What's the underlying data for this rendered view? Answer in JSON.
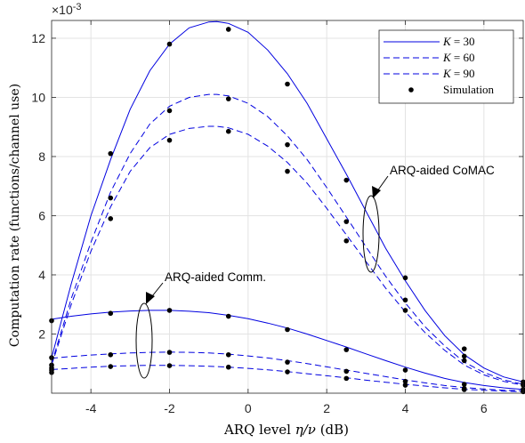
{
  "chart_data": {
    "type": "line",
    "xlabel_main": "ARQ level ",
    "xlabel_math": "η/ν",
    "xlabel_unit": " (dB)",
    "ylabel": "Computation rate (functions/channel use)",
    "y_exponent_base": "×10",
    "y_exponent_power": "-3",
    "xlim": [
      -5,
      7
    ],
    "ylim": [
      0,
      12.6
    ],
    "xticks": [
      -4,
      -2,
      0,
      2,
      4,
      6
    ],
    "yticks": [
      2,
      4,
      6,
      8,
      10,
      12
    ],
    "grid": true,
    "legend_position": "top-right",
    "legend": [
      {
        "label_math": "K",
        "label_rest": " = 30",
        "style": "solid"
      },
      {
        "label_math": "K",
        "label_rest": " = 60",
        "style": "dashed"
      },
      {
        "label_math": "K",
        "label_rest": " = 90",
        "style": "dashed"
      },
      {
        "label_math": "",
        "label_rest": "Simulation",
        "style": "dot"
      }
    ],
    "line_color": "#0000e0",
    "marker_color": "#000000",
    "series": [
      {
        "group": "ARQ-aided CoMAC",
        "K": 30,
        "style": "solid",
        "x": [
          -5,
          -4.5,
          -4,
          -3.5,
          -3,
          -2.5,
          -2,
          -1.5,
          -1,
          -0.8,
          -0.5,
          0,
          0.5,
          1,
          1.5,
          2,
          2.5,
          3,
          3.5,
          4,
          4.5,
          5,
          5.5,
          6,
          6.5,
          7
        ],
        "y": [
          1.2,
          3.7,
          6.0,
          7.9,
          9.6,
          10.9,
          11.8,
          12.35,
          12.55,
          12.56,
          12.5,
          12.2,
          11.6,
          10.8,
          9.8,
          8.6,
          7.4,
          6.15,
          4.9,
          3.8,
          2.8,
          1.95,
          1.3,
          0.85,
          0.55,
          0.38
        ]
      },
      {
        "group": "ARQ-aided CoMAC",
        "K": 60,
        "style": "dashed",
        "x": [
          -5,
          -4.5,
          -4,
          -3.5,
          -3,
          -2.5,
          -2,
          -1.5,
          -1,
          -0.8,
          -0.5,
          0,
          0.5,
          1,
          1.5,
          2,
          2.5,
          3,
          3.5,
          4,
          4.5,
          5,
          5.5,
          6,
          6.5,
          7
        ],
        "y": [
          1.0,
          3.2,
          5.1,
          6.8,
          8.1,
          9.1,
          9.7,
          10.0,
          10.1,
          10.1,
          10.05,
          9.8,
          9.35,
          8.7,
          7.9,
          6.95,
          5.95,
          4.95,
          3.95,
          3.05,
          2.25,
          1.6,
          1.05,
          0.7,
          0.45,
          0.3
        ]
      },
      {
        "group": "ARQ-aided CoMAC",
        "K": 90,
        "style": "dashed",
        "x": [
          -5,
          -4.5,
          -4,
          -3.5,
          -3,
          -2.5,
          -2,
          -1.5,
          -1,
          -0.8,
          -0.5,
          0,
          0.5,
          1,
          1.5,
          2,
          2.5,
          3,
          3.5,
          4,
          4.5,
          5,
          5.5,
          6,
          6.5,
          7
        ],
        "y": [
          0.95,
          3.0,
          4.8,
          6.3,
          7.5,
          8.3,
          8.75,
          8.95,
          9.02,
          9.02,
          8.97,
          8.75,
          8.35,
          7.8,
          7.1,
          6.25,
          5.35,
          4.45,
          3.55,
          2.75,
          2.05,
          1.45,
          0.95,
          0.62,
          0.4,
          0.27
        ]
      },
      {
        "group": "ARQ-aided Comm.",
        "K": 30,
        "style": "solid",
        "x": [
          -5,
          -4.5,
          -4,
          -3.5,
          -3,
          -2.5,
          -2,
          -1.5,
          -1,
          -0.5,
          0,
          0.5,
          1,
          1.5,
          2,
          2.5,
          3,
          3.5,
          4,
          4.5,
          5,
          5.5,
          6,
          6.5,
          7
        ],
        "y": [
          2.5,
          2.6,
          2.68,
          2.74,
          2.78,
          2.8,
          2.8,
          2.77,
          2.72,
          2.63,
          2.52,
          2.37,
          2.2,
          2.0,
          1.78,
          1.56,
          1.33,
          1.1,
          0.88,
          0.68,
          0.5,
          0.36,
          0.26,
          0.18,
          0.13
        ]
      },
      {
        "group": "ARQ-aided Comm.",
        "K": 60,
        "style": "dashed",
        "x": [
          -5,
          -4.5,
          -4,
          -3.5,
          -3,
          -2.5,
          -2,
          -1.5,
          -1,
          -0.5,
          0,
          0.5,
          1,
          1.5,
          2,
          2.5,
          3,
          3.5,
          4,
          4.5,
          5,
          5.5,
          6,
          6.5,
          7
        ],
        "y": [
          1.18,
          1.24,
          1.29,
          1.33,
          1.36,
          1.38,
          1.39,
          1.38,
          1.36,
          1.32,
          1.26,
          1.19,
          1.1,
          1.0,
          0.89,
          0.78,
          0.67,
          0.56,
          0.45,
          0.35,
          0.26,
          0.19,
          0.14,
          0.1,
          0.08
        ]
      },
      {
        "group": "ARQ-aided Comm.",
        "K": 90,
        "style": "dashed",
        "x": [
          -5,
          -4.5,
          -4,
          -3.5,
          -3,
          -2.5,
          -2,
          -1.5,
          -1,
          -0.5,
          0,
          0.5,
          1,
          1.5,
          2,
          2.5,
          3,
          3.5,
          4,
          4.5,
          5,
          5.5,
          6,
          6.5,
          7
        ],
        "y": [
          0.8,
          0.84,
          0.88,
          0.91,
          0.93,
          0.94,
          0.94,
          0.93,
          0.91,
          0.88,
          0.84,
          0.79,
          0.73,
          0.66,
          0.59,
          0.52,
          0.44,
          0.37,
          0.3,
          0.24,
          0.18,
          0.13,
          0.1,
          0.07,
          0.05
        ]
      }
    ],
    "simulation_points": [
      [
        -5,
        1.2
      ],
      [
        -5,
        0.95
      ],
      [
        -5,
        0.85
      ],
      [
        -5,
        2.45
      ],
      [
        -5,
        0.78
      ],
      [
        -5,
        0.7
      ],
      [
        -3.5,
        8.1
      ],
      [
        -3.5,
        6.6
      ],
      [
        -3.5,
        5.9
      ],
      [
        -3.5,
        2.7
      ],
      [
        -3.5,
        1.3
      ],
      [
        -3.5,
        0.9
      ],
      [
        -2,
        11.8
      ],
      [
        -2,
        9.55
      ],
      [
        -2,
        8.55
      ],
      [
        -2,
        2.8
      ],
      [
        -2,
        1.38
      ],
      [
        -2,
        0.93
      ],
      [
        -0.5,
        12.3
      ],
      [
        -0.5,
        9.95
      ],
      [
        -0.5,
        8.85
      ],
      [
        -0.5,
        2.6
      ],
      [
        -0.5,
        1.3
      ],
      [
        -0.5,
        0.88
      ],
      [
        1,
        10.45
      ],
      [
        1,
        8.4
      ],
      [
        1,
        7.5
      ],
      [
        1,
        2.15
      ],
      [
        1,
        1.05
      ],
      [
        1,
        0.72
      ],
      [
        2.5,
        7.2
      ],
      [
        2.5,
        5.8
      ],
      [
        2.5,
        5.15
      ],
      [
        2.5,
        1.47
      ],
      [
        2.5,
        0.74
      ],
      [
        2.5,
        0.5
      ],
      [
        4,
        3.9
      ],
      [
        4,
        3.15
      ],
      [
        4,
        2.8
      ],
      [
        4,
        0.78
      ],
      [
        4,
        0.4
      ],
      [
        4,
        0.27
      ],
      [
        5.5,
        1.5
      ],
      [
        5.5,
        1.25
      ],
      [
        5.5,
        1.1
      ],
      [
        5.5,
        0.3
      ],
      [
        5.5,
        0.16
      ],
      [
        5.5,
        0.12
      ],
      [
        7,
        0.38
      ],
      [
        7,
        0.3
      ],
      [
        7,
        0.27
      ],
      [
        7,
        0.13
      ],
      [
        7,
        0.08
      ],
      [
        7,
        0.05
      ]
    ],
    "annotations": [
      {
        "text": "ARQ-aided CoMAC",
        "target": "upper curve group"
      },
      {
        "text": "ARQ-aided Comm.",
        "target": "lower curve group"
      }
    ]
  }
}
